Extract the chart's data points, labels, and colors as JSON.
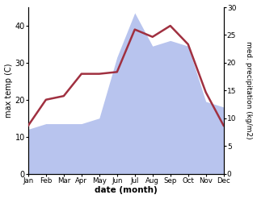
{
  "months": [
    "Jan",
    "Feb",
    "Mar",
    "Apr",
    "May",
    "Jun",
    "Jul",
    "Aug",
    "Sep",
    "Oct",
    "Nov",
    "Dec"
  ],
  "month_x": [
    0,
    1,
    2,
    3,
    4,
    5,
    6,
    7,
    8,
    9,
    10,
    11
  ],
  "temp": [
    13,
    20,
    21,
    27,
    27,
    27.5,
    39,
    37,
    40,
    35,
    22,
    13
  ],
  "precip": [
    8,
    9,
    9,
    9,
    10,
    21,
    29,
    23,
    24,
    23,
    13,
    12
  ],
  "temp_color": "#a03040",
  "precip_color_fill": "#b8c4ee",
  "ylabel_left": "max temp (C)",
  "ylabel_right": "med. precipitation (kg/m2)",
  "xlabel": "date (month)",
  "ylim_left": [
    0,
    45
  ],
  "ylim_right": [
    0,
    30
  ],
  "yticks_left": [
    0,
    10,
    20,
    30,
    40
  ],
  "yticks_right": [
    0,
    5,
    10,
    15,
    20,
    25,
    30
  ],
  "bg_color": "#ffffff"
}
